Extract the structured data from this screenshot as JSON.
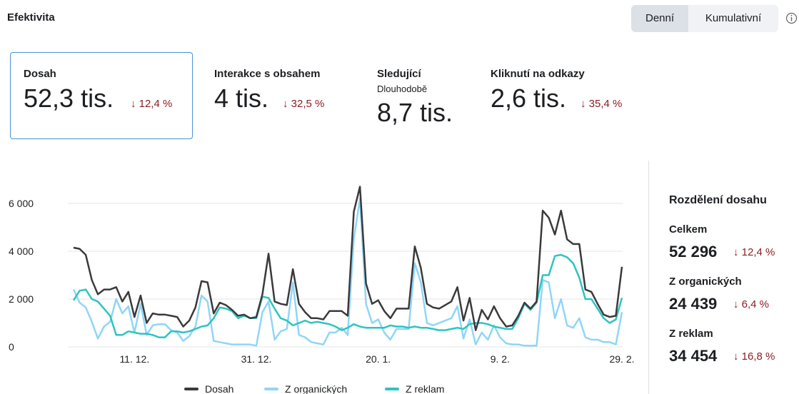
{
  "header": {
    "title": "Efektivita",
    "tabs": [
      "Denní",
      "Kumulativní"
    ]
  },
  "cards": [
    {
      "title": "Dosah",
      "value": "52,3 tis.",
      "change": "↓ 12,4 %"
    },
    {
      "title": "Interakce s obsahem",
      "value": "4 tis.",
      "change": "↓ 32,5 %"
    },
    {
      "title": "Sledující",
      "subtitle": "Dlouhodobě",
      "value": "8,7 tis."
    },
    {
      "title": "Kliknutí na odkazy",
      "value": "2,6 tis.",
      "change": "↓ 35,4 %"
    }
  ],
  "breakdown": {
    "title": "Rozdělení dosahu",
    "items": [
      {
        "label": "Celkem",
        "value": "52 296",
        "change": "↓ 12,4 %"
      },
      {
        "label": "Z organických",
        "value": "24 439",
        "change": "↓ 6,4 %"
      },
      {
        "label": "Z reklam",
        "value": "34 454",
        "change": "↓ 16,8 %"
      }
    ]
  },
  "chart_data": {
    "type": "line",
    "categories": [
      null,
      null,
      null,
      null,
      null,
      null,
      null,
      null,
      null,
      null,
      "11. 12.",
      null,
      null,
      null,
      null,
      null,
      null,
      null,
      null,
      null,
      null,
      null,
      null,
      null,
      null,
      null,
      null,
      null,
      null,
      null,
      "31. 12.",
      null,
      null,
      null,
      null,
      null,
      null,
      null,
      null,
      null,
      null,
      null,
      null,
      null,
      null,
      null,
      null,
      null,
      null,
      null,
      "20. 1.",
      null,
      null,
      null,
      null,
      null,
      null,
      null,
      null,
      null,
      null,
      null,
      null,
      null,
      null,
      null,
      null,
      null,
      null,
      null,
      "9. 2.",
      null,
      null,
      null,
      null,
      null,
      null,
      null,
      null,
      null,
      null,
      null,
      null,
      null,
      null,
      null,
      null,
      null,
      null,
      null,
      "29. 2."
    ],
    "series": [
      {
        "name": "Dosah",
        "color": "#3a3a3c",
        "values": [
          4150,
          4100,
          3850,
          2800,
          2200,
          2400,
          2400,
          2500,
          1900,
          2300,
          1250,
          2150,
          1000,
          1400,
          1350,
          1350,
          1300,
          1250,
          850,
          1100,
          1650,
          2750,
          2700,
          1400,
          1850,
          1750,
          1550,
          1300,
          1350,
          1200,
          1250,
          2200,
          3900,
          1900,
          1800,
          1750,
          3250,
          1800,
          1450,
          1200,
          1200,
          1150,
          1500,
          1500,
          1500,
          1300,
          5650,
          6700,
          2650,
          1800,
          1950,
          1500,
          1200,
          1600,
          1600,
          1600,
          4200,
          3300,
          1800,
          1650,
          1600,
          1750,
          1900,
          2500,
          1100,
          2050,
          700,
          1550,
          1150,
          1700,
          1200,
          850,
          900,
          1300,
          1850,
          1600,
          1900,
          5700,
          5400,
          4700,
          5700,
          4500,
          4300,
          4300,
          2400,
          2300,
          1800,
          1350,
          1250,
          1300,
          3350
        ]
      },
      {
        "name": "Z organických",
        "color": "#8fd6f7",
        "values": [
          2400,
          1850,
          1650,
          1050,
          350,
          850,
          1050,
          2000,
          1400,
          1700,
          600,
          1800,
          500,
          900,
          950,
          950,
          700,
          600,
          250,
          450,
          850,
          2150,
          1900,
          250,
          200,
          150,
          100,
          100,
          100,
          100,
          50,
          1450,
          1900,
          300,
          650,
          750,
          2700,
          500,
          400,
          200,
          150,
          100,
          600,
          600,
          800,
          500,
          4500,
          6200,
          1800,
          1000,
          1150,
          600,
          300,
          750,
          750,
          750,
          3500,
          2700,
          1000,
          900,
          1000,
          1100,
          1200,
          1700,
          350,
          1150,
          100,
          600,
          300,
          900,
          400,
          150,
          100,
          100,
          50,
          50,
          50,
          2800,
          2700,
          1200,
          2000,
          900,
          800,
          1200,
          400,
          300,
          300,
          200,
          200,
          100,
          1450
        ]
      },
      {
        "name": "Z reklam",
        "color": "#2ec4c0",
        "values": [
          1950,
          2350,
          2400,
          2000,
          1900,
          1600,
          1300,
          500,
          500,
          650,
          600,
          550,
          550,
          500,
          400,
          400,
          650,
          650,
          600,
          650,
          750,
          850,
          900,
          1200,
          1650,
          1600,
          1500,
          1200,
          1300,
          1200,
          1200,
          2100,
          2050,
          1600,
          1200,
          1100,
          900,
          1000,
          1100,
          1000,
          1050,
          1000,
          950,
          850,
          700,
          800,
          950,
          850,
          800,
          800,
          800,
          800,
          900,
          850,
          850,
          800,
          850,
          800,
          800,
          750,
          700,
          700,
          750,
          800,
          750,
          950,
          1000,
          1000,
          950,
          850,
          800,
          750,
          750,
          1200,
          1800,
          1550,
          1850,
          3000,
          3000,
          3800,
          3850,
          3750,
          3500,
          2900,
          2000,
          2000,
          1600,
          1200,
          1000,
          1150,
          2050
        ]
      }
    ],
    "ylim": [
      0,
      7000
    ],
    "yticks": [
      0,
      {
        "value": 2000,
        "label": "2 000"
      },
      {
        "value": 4000,
        "label": "4 000"
      },
      {
        "value": 6000,
        "label": "6 000"
      }
    ],
    "grid": true,
    "legend": "bottom"
  }
}
